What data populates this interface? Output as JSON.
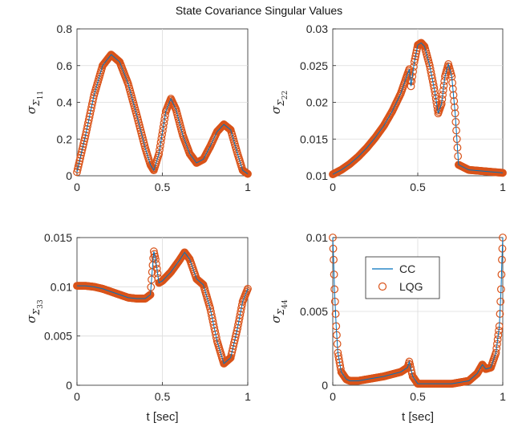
{
  "figure": {
    "title": "State Covariance Singular Values"
  },
  "colors": {
    "cc": "#0072bd",
    "lqg": "#d95319"
  },
  "legend": {
    "items": [
      {
        "label": "CC",
        "style": "line",
        "color": "#0072bd"
      },
      {
        "label": "LQG",
        "style": "circle",
        "color": "#d95319"
      }
    ],
    "subplot": 3,
    "placement": "upper-middle"
  },
  "chart_data": [
    {
      "type": "line",
      "ylabel": "σ_Σ11",
      "ylabel_parts": {
        "sigma": "σ",
        "sub": "Σ",
        "subsub": "11"
      },
      "xlabel": "",
      "xlim": [
        0,
        1
      ],
      "ylim": [
        0,
        0.8
      ],
      "xticks": [
        0,
        0.5,
        1
      ],
      "xtick_labels": [
        "0",
        "0.5",
        "1"
      ],
      "yticks": [
        0,
        0.2,
        0.4,
        0.6,
        0.8
      ],
      "ytick_labels": [
        "0",
        "0.2",
        "0.4",
        "0.6",
        "0.8"
      ],
      "grid": true,
      "series": [
        {
          "name": "CC",
          "x": [
            0,
            0.05,
            0.1,
            0.15,
            0.2,
            0.25,
            0.3,
            0.35,
            0.4,
            0.43,
            0.45,
            0.48,
            0.52,
            0.55,
            0.58,
            0.62,
            0.66,
            0.7,
            0.74,
            0.78,
            0.82,
            0.86,
            0.9,
            0.94,
            0.97,
            1.0
          ],
          "y": [
            0.02,
            0.22,
            0.44,
            0.6,
            0.66,
            0.62,
            0.5,
            0.33,
            0.15,
            0.06,
            0.03,
            0.12,
            0.35,
            0.42,
            0.36,
            0.22,
            0.12,
            0.07,
            0.09,
            0.16,
            0.24,
            0.28,
            0.25,
            0.12,
            0.03,
            0.01
          ]
        },
        {
          "name": "LQG",
          "x": [
            0,
            0.05,
            0.1,
            0.15,
            0.2,
            0.25,
            0.3,
            0.35,
            0.4,
            0.43,
            0.45,
            0.48,
            0.52,
            0.55,
            0.58,
            0.62,
            0.66,
            0.7,
            0.74,
            0.78,
            0.82,
            0.86,
            0.9,
            0.94,
            0.97,
            1.0
          ],
          "y": [
            0.02,
            0.22,
            0.44,
            0.6,
            0.66,
            0.62,
            0.5,
            0.33,
            0.15,
            0.06,
            0.03,
            0.12,
            0.35,
            0.42,
            0.36,
            0.22,
            0.12,
            0.07,
            0.09,
            0.16,
            0.24,
            0.28,
            0.25,
            0.12,
            0.03,
            0.01
          ]
        }
      ]
    },
    {
      "type": "line",
      "ylabel": "σ_Σ22",
      "ylabel_parts": {
        "sigma": "σ",
        "sub": "Σ",
        "subsub": "22"
      },
      "xlabel": "",
      "xlim": [
        0,
        1
      ],
      "ylim": [
        0.01,
        0.03
      ],
      "xticks": [
        0,
        0.5,
        1
      ],
      "xtick_labels": [
        "0",
        "0.5",
        "1"
      ],
      "yticks": [
        0.01,
        0.015,
        0.02,
        0.025,
        0.03
      ],
      "ytick_labels": [
        "0.01",
        "0.015",
        "0.02",
        "0.025",
        "0.03"
      ],
      "grid": true,
      "series": [
        {
          "name": "CC",
          "x": [
            0,
            0.05,
            0.1,
            0.15,
            0.2,
            0.25,
            0.3,
            0.35,
            0.4,
            0.43,
            0.45,
            0.46,
            0.48,
            0.5,
            0.52,
            0.54,
            0.57,
            0.6,
            0.62,
            0.64,
            0.66,
            0.68,
            0.7,
            0.72,
            0.74,
            0.8,
            0.9,
            1.0
          ],
          "y": [
            0.0102,
            0.0108,
            0.0116,
            0.0126,
            0.0138,
            0.0152,
            0.0168,
            0.0188,
            0.0212,
            0.0232,
            0.0245,
            0.0222,
            0.0255,
            0.0278,
            0.0281,
            0.0276,
            0.025,
            0.0215,
            0.0185,
            0.0198,
            0.0235,
            0.0252,
            0.0235,
            0.0185,
            0.0115,
            0.0108,
            0.0106,
            0.0104
          ]
        },
        {
          "name": "LQG",
          "x": [
            0,
            0.05,
            0.1,
            0.15,
            0.2,
            0.25,
            0.3,
            0.35,
            0.4,
            0.43,
            0.45,
            0.46,
            0.48,
            0.5,
            0.52,
            0.54,
            0.57,
            0.6,
            0.62,
            0.64,
            0.66,
            0.68,
            0.7,
            0.72,
            0.74,
            0.8,
            0.9,
            1.0
          ],
          "y": [
            0.0102,
            0.0108,
            0.0116,
            0.0126,
            0.0138,
            0.0152,
            0.0168,
            0.0188,
            0.0212,
            0.0232,
            0.0245,
            0.0222,
            0.0255,
            0.0278,
            0.0281,
            0.0276,
            0.025,
            0.0215,
            0.0185,
            0.0198,
            0.0235,
            0.0252,
            0.0235,
            0.0185,
            0.0115,
            0.0108,
            0.0106,
            0.0104
          ]
        }
      ]
    },
    {
      "type": "line",
      "ylabel": "σ_Σ33",
      "ylabel_parts": {
        "sigma": "σ",
        "sub": "Σ",
        "subsub": "33"
      },
      "xlabel": "t [sec]",
      "xlim": [
        0,
        1
      ],
      "ylim": [
        0,
        0.015
      ],
      "xticks": [
        0,
        0.5,
        1
      ],
      "xtick_labels": [
        "0",
        "0.5",
        "1"
      ],
      "yticks": [
        0,
        0.005,
        0.01,
        0.015
      ],
      "ytick_labels": [
        "0",
        "0.005",
        "0.01",
        "0.015"
      ],
      "grid": true,
      "series": [
        {
          "name": "CC",
          "x": [
            0,
            0.05,
            0.1,
            0.15,
            0.2,
            0.25,
            0.3,
            0.35,
            0.4,
            0.43,
            0.44,
            0.45,
            0.46,
            0.48,
            0.5,
            0.55,
            0.6,
            0.63,
            0.66,
            0.7,
            0.74,
            0.78,
            0.82,
            0.86,
            0.9,
            0.94,
            0.97,
            1.0
          ],
          "y": [
            0.0101,
            0.0101,
            0.01,
            0.0098,
            0.0095,
            0.0092,
            0.0089,
            0.0088,
            0.0088,
            0.0092,
            0.0115,
            0.0136,
            0.0128,
            0.0104,
            0.0106,
            0.0115,
            0.0127,
            0.0135,
            0.0128,
            0.0108,
            0.0102,
            0.0078,
            0.0045,
            0.0022,
            0.0028,
            0.0058,
            0.0085,
            0.0098
          ]
        },
        {
          "name": "LQG",
          "x": [
            0,
            0.05,
            0.1,
            0.15,
            0.2,
            0.25,
            0.3,
            0.35,
            0.4,
            0.43,
            0.44,
            0.45,
            0.46,
            0.48,
            0.5,
            0.55,
            0.6,
            0.63,
            0.66,
            0.7,
            0.74,
            0.78,
            0.82,
            0.86,
            0.9,
            0.94,
            0.97,
            1.0
          ],
          "y": [
            0.0101,
            0.0101,
            0.01,
            0.0098,
            0.0095,
            0.0092,
            0.0089,
            0.0088,
            0.0088,
            0.0092,
            0.0115,
            0.0136,
            0.0128,
            0.0104,
            0.0106,
            0.0115,
            0.0127,
            0.0135,
            0.0128,
            0.0108,
            0.0102,
            0.0078,
            0.0045,
            0.0022,
            0.0028,
            0.0058,
            0.0085,
            0.0098
          ]
        }
      ]
    },
    {
      "type": "line",
      "ylabel": "σ_Σ44",
      "ylabel_parts": {
        "sigma": "σ",
        "sub": "Σ",
        "subsub": "44"
      },
      "xlabel": "t [sec]",
      "xlim": [
        0,
        1
      ],
      "ylim": [
        0,
        0.01
      ],
      "xticks": [
        0,
        0.5,
        1
      ],
      "xtick_labels": [
        "0",
        "0.5",
        "1"
      ],
      "yticks": [
        0,
        0.005,
        0.01
      ],
      "ytick_labels": [
        "0",
        "0.005",
        "0.01"
      ],
      "grid": true,
      "series": [
        {
          "name": "CC",
          "x": [
            0,
            0.005,
            0.01,
            0.02,
            0.03,
            0.05,
            0.08,
            0.1,
            0.15,
            0.2,
            0.3,
            0.4,
            0.44,
            0.45,
            0.47,
            0.5,
            0.6,
            0.7,
            0.8,
            0.85,
            0.88,
            0.9,
            0.93,
            0.96,
            0.98,
            0.99,
            0.995,
            1.0
          ],
          "y": [
            0.01,
            0.0085,
            0.0065,
            0.004,
            0.0022,
            0.0009,
            0.0004,
            0.0003,
            0.0003,
            0.0004,
            0.0006,
            0.0009,
            0.0012,
            0.0016,
            0.0006,
            0.0001,
            0.0001,
            0.0001,
            0.0003,
            0.0008,
            0.0014,
            0.0011,
            0.0012,
            0.0022,
            0.004,
            0.0065,
            0.0085,
            0.01
          ]
        },
        {
          "name": "LQG",
          "x": [
            0,
            0.005,
            0.01,
            0.02,
            0.03,
            0.05,
            0.08,
            0.1,
            0.15,
            0.2,
            0.3,
            0.4,
            0.44,
            0.45,
            0.47,
            0.5,
            0.6,
            0.7,
            0.8,
            0.85,
            0.88,
            0.9,
            0.93,
            0.96,
            0.98,
            0.99,
            0.995,
            1.0
          ],
          "y": [
            0.01,
            0.0085,
            0.0065,
            0.004,
            0.0022,
            0.0009,
            0.0004,
            0.0003,
            0.0003,
            0.0004,
            0.0006,
            0.0009,
            0.0012,
            0.0016,
            0.0006,
            0.0001,
            0.0001,
            0.0001,
            0.0003,
            0.0008,
            0.0014,
            0.0011,
            0.0012,
            0.0022,
            0.004,
            0.0065,
            0.0085,
            0.01
          ]
        }
      ]
    }
  ]
}
